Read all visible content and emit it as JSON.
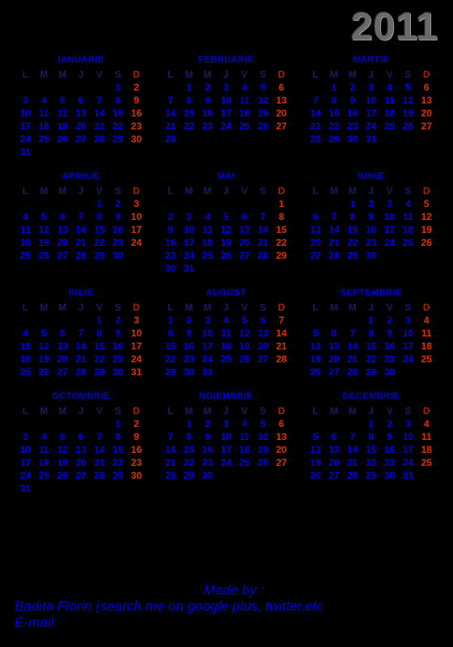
{
  "year": "2011",
  "dow_labels": [
    "L",
    "M",
    "M",
    "J",
    "V",
    "S",
    "D"
  ],
  "months": [
    {
      "name": "IANUARIE",
      "startDow": 5,
      "days": 31
    },
    {
      "name": "FEBRUARIE",
      "startDow": 1,
      "days": 28
    },
    {
      "name": "MARTIE",
      "startDow": 1,
      "days": 31
    },
    {
      "name": "APRILIE",
      "startDow": 4,
      "days": 30
    },
    {
      "name": "MAI",
      "startDow": 6,
      "days": 31
    },
    {
      "name": "IUNIE",
      "startDow": 2,
      "days": 30
    },
    {
      "name": "IULIE",
      "startDow": 4,
      "days": 31
    },
    {
      "name": "AUGUST",
      "startDow": 0,
      "days": 31
    },
    {
      "name": "SEPTEMBRIE",
      "startDow": 3,
      "days": 30
    },
    {
      "name": "OCTOMBRIE",
      "startDow": 5,
      "days": 31
    },
    {
      "name": "NOIEMBRIE",
      "startDow": 1,
      "days": 30
    },
    {
      "name": "DECEMBRIE",
      "startDow": 3,
      "days": 31
    }
  ],
  "footer": {
    "line1": "Made by :",
    "line2": "Badita Florin (search me on google plus, twitter,etc",
    "line3": "E-mail:"
  },
  "colors": {
    "background": "#000000",
    "weekday": "#0000ee",
    "sunday": "#dd3300",
    "heading_weekday": "#1a1a66",
    "heading_sunday": "#aa2200",
    "month_name": "#0000dd",
    "year": "#6a6a6a",
    "footer": "#0000dd"
  }
}
